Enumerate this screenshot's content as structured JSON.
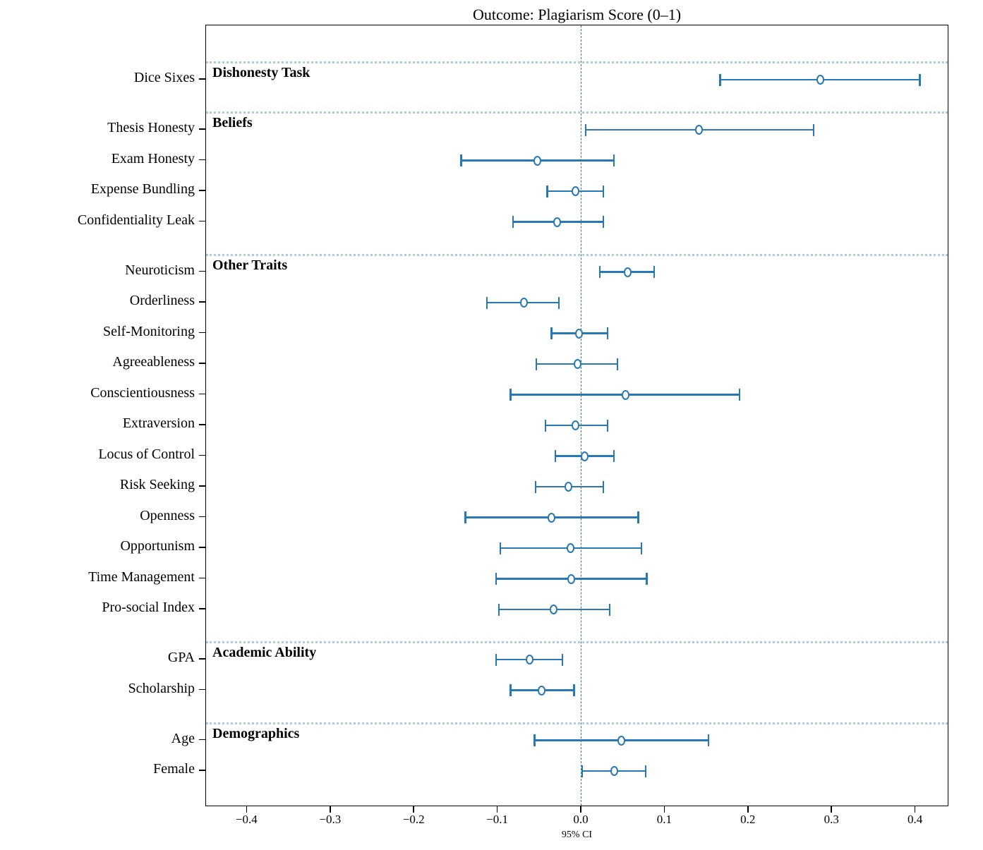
{
  "chart_data": {
    "type": "forest",
    "title": "Outcome: Plagiarism Score (0–1)",
    "xlabel": "95% CI",
    "xlim": [
      -0.452,
      0.446
    ],
    "zero_line": 0.0,
    "grid": false,
    "legend": "none",
    "marker_style": "open-circle",
    "xticks": [
      -0.4,
      -0.3,
      -0.2,
      -0.1,
      0.0,
      0.1,
      0.2,
      0.3,
      0.4
    ],
    "xtick_labels": [
      "−0.4",
      "−0.3",
      "−0.2",
      "−0.1",
      "0.0",
      "0.1",
      "0.2",
      "0.3",
      "0.4"
    ],
    "groups": [
      {
        "name": "Dishonesty Task",
        "rows": [
          {
            "label": "Dice Sixes",
            "estimate": 0.286,
            "ci_low": 0.166,
            "ci_high": 0.405
          }
        ]
      },
      {
        "name": "Beliefs",
        "rows": [
          {
            "label": "Thesis Honesty",
            "estimate": 0.141,
            "ci_low": 0.005,
            "ci_high": 0.278
          },
          {
            "label": "Exam Honesty",
            "estimate": -0.053,
            "ci_low": -0.144,
            "ci_high": 0.039
          },
          {
            "label": "Expense Bundling",
            "estimate": -0.007,
            "ci_low": -0.041,
            "ci_high": 0.026
          },
          {
            "label": "Confidentiality Leak",
            "estimate": -0.029,
            "ci_low": -0.082,
            "ci_high": 0.026
          }
        ]
      },
      {
        "name": "Other Traits",
        "rows": [
          {
            "label": "Neuroticism",
            "estimate": 0.055,
            "ci_low": 0.022,
            "ci_high": 0.087
          },
          {
            "label": "Orderliness",
            "estimate": -0.069,
            "ci_low": -0.113,
            "ci_high": -0.027
          },
          {
            "label": "Self-Monitoring",
            "estimate": -0.003,
            "ci_low": -0.036,
            "ci_high": 0.031
          },
          {
            "label": "Agreeableness",
            "estimate": -0.005,
            "ci_low": -0.054,
            "ci_high": 0.043
          },
          {
            "label": "Conscientiousness",
            "estimate": 0.053,
            "ci_low": -0.085,
            "ci_high": 0.189
          },
          {
            "label": "Extraversion",
            "estimate": -0.007,
            "ci_low": -0.043,
            "ci_high": 0.031
          },
          {
            "label": "Locus of Control",
            "estimate": 0.004,
            "ci_low": -0.031,
            "ci_high": 0.039
          },
          {
            "label": "Risk Seeking",
            "estimate": -0.016,
            "ci_low": -0.055,
            "ci_high": 0.026
          },
          {
            "label": "Openness",
            "estimate": -0.036,
            "ci_low": -0.139,
            "ci_high": 0.068
          },
          {
            "label": "Opportunism",
            "estimate": -0.013,
            "ci_low": -0.097,
            "ci_high": 0.072
          },
          {
            "label": "Time Management",
            "estimate": -0.012,
            "ci_low": -0.102,
            "ci_high": 0.078
          },
          {
            "label": "Pro-social Index",
            "estimate": -0.033,
            "ci_low": -0.099,
            "ci_high": 0.034
          }
        ]
      },
      {
        "name": "Academic Ability",
        "rows": [
          {
            "label": "GPA",
            "estimate": -0.062,
            "ci_low": -0.102,
            "ci_high": -0.023
          },
          {
            "label": "Scholarship",
            "estimate": -0.048,
            "ci_low": -0.085,
            "ci_high": -0.009
          }
        ]
      },
      {
        "name": "Demographics",
        "rows": [
          {
            "label": "Age",
            "estimate": 0.048,
            "ci_low": -0.056,
            "ci_high": 0.152
          },
          {
            "label": "Female",
            "estimate": 0.039,
            "ci_low": 0.001,
            "ci_high": 0.077
          }
        ]
      }
    ],
    "colors": {
      "series_blue": "#2878b4",
      "section_line_blue": "#aacde4",
      "zero_line_blue": "#2878b4",
      "axis_black": "#000000",
      "background": "#ffffff"
    }
  }
}
